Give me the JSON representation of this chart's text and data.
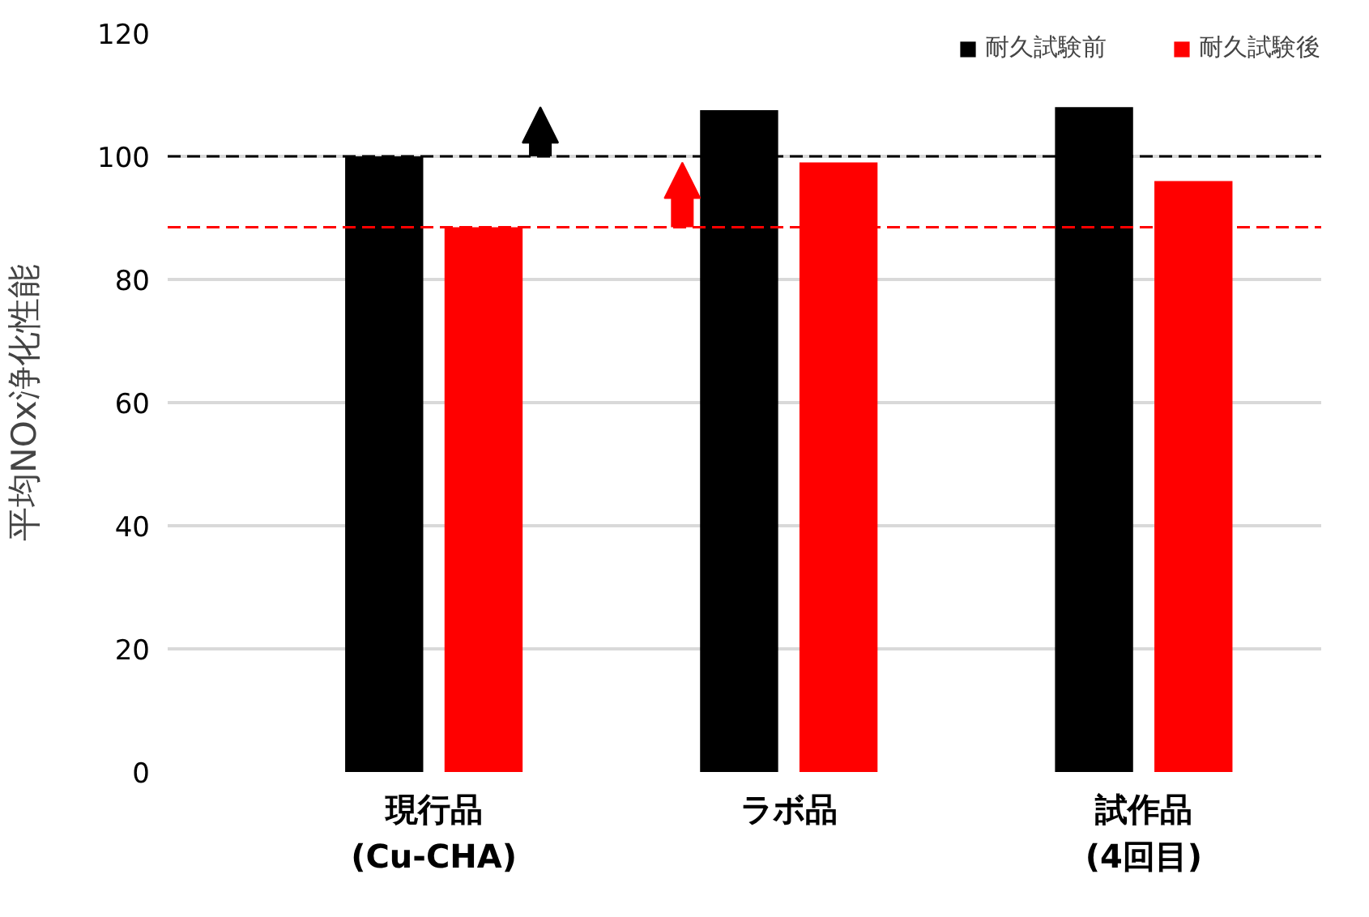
{
  "chart_data": {
    "type": "bar",
    "ylabel": "平均NOx浄化性能",
    "categories": [
      "現行品\n(Cu-CHA)",
      "ラボ品",
      "試作品\n(4回目)"
    ],
    "series": [
      {
        "name": "耐久試験前",
        "color": "#000000",
        "values": [
          100,
          107.5,
          108
        ]
      },
      {
        "name": "耐久試験後",
        "color": "#ff0000",
        "values": [
          88.5,
          99,
          96
        ]
      }
    ],
    "ylim": [
      0,
      120
    ],
    "yticks": [
      0,
      20,
      40,
      60,
      80,
      100,
      120
    ],
    "grid": "y",
    "legend": "top right",
    "ref_lines": [
      {
        "axis": "y",
        "value": 100,
        "color": "#000000",
        "line_style": "dashed"
      },
      {
        "axis": "y",
        "value": 88.5,
        "color": "#ff0000",
        "line_style": "dashed"
      }
    ]
  }
}
